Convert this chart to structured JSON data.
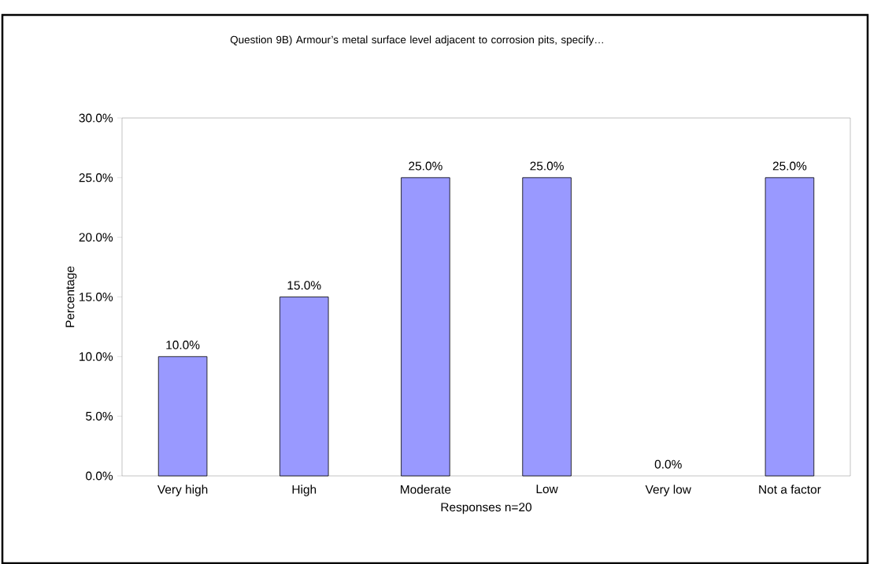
{
  "chart_data": {
    "type": "bar",
    "title": "Question 9B)  Armour’s metal surface level adjacent to corrosion pits, specify…",
    "xlabel": "Responses n=20",
    "ylabel": "Percentage",
    "categories": [
      "Very high",
      "High",
      "Moderate",
      "Low",
      "Very low",
      "Not a factor"
    ],
    "values": [
      10,
      15,
      25,
      25,
      0,
      25
    ],
    "value_labels": [
      "10.0%",
      "15.0%",
      "25.0%",
      "25.0%",
      "0.0%",
      "25.0%"
    ],
    "color": "#9999ff",
    "ylim": [
      0,
      30
    ],
    "yticks": [
      {
        "value": 0,
        "label": "0.0%"
      },
      {
        "value": 5,
        "label": "5.0%"
      },
      {
        "value": 10,
        "label": "10.0%"
      },
      {
        "value": 15,
        "label": "15.0%"
      },
      {
        "value": 20,
        "label": "20.0%"
      },
      {
        "value": 25,
        "label": "25.0%"
      },
      {
        "value": 30,
        "label": "30.0%"
      }
    ],
    "grid": false
  }
}
